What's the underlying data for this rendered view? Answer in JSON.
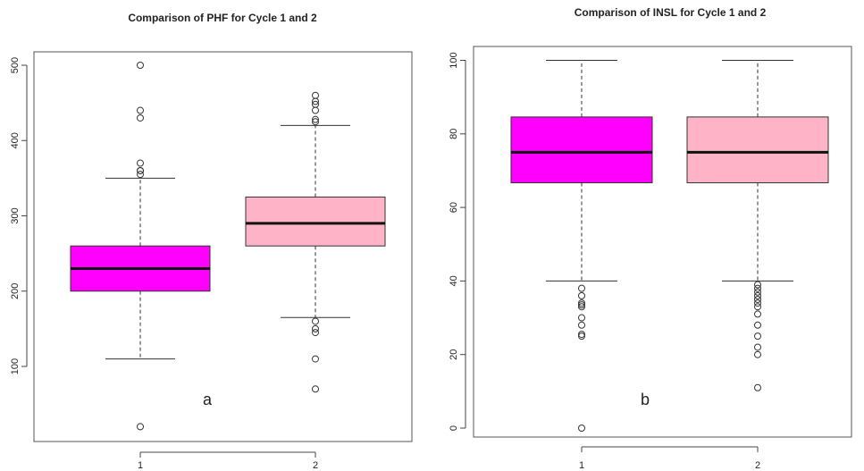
{
  "chart_data": [
    {
      "type": "boxplot",
      "title": "Comparison of PHF for Cycle 1 and 2",
      "panel_label": "a",
      "xlabel": "",
      "ylabel": "",
      "categories": [
        "1",
        "2"
      ],
      "yticks": [
        100,
        200,
        300,
        400,
        500
      ],
      "ylim": [
        0,
        520
      ],
      "grid": false,
      "boxes": [
        {
          "category": "1",
          "color": "#ff00ff",
          "whisker_low": 110,
          "q1": 200,
          "median": 230,
          "q3": 260,
          "whisker_high": 350,
          "outliers": [
            20,
            355,
            360,
            360,
            370,
            430,
            440,
            500
          ]
        },
        {
          "category": "2",
          "color": "#ffb3c6",
          "whisker_low": 165,
          "q1": 260,
          "median": 290,
          "q3": 325,
          "whisker_high": 420,
          "outliers": [
            70,
            110,
            145,
            150,
            160,
            425,
            428,
            440,
            448,
            452,
            460
          ]
        }
      ]
    },
    {
      "type": "boxplot",
      "title": "Comparison of INSL for Cycle 1 and 2",
      "panel_label": "b",
      "xlabel": "",
      "ylabel": "",
      "categories": [
        "1",
        "2"
      ],
      "yticks": [
        0,
        20,
        40,
        60,
        80,
        100
      ],
      "ylim": [
        0,
        100
      ],
      "grid": false,
      "boxes": [
        {
          "category": "1",
          "color": "#ff00ff",
          "whisker_low": 40,
          "q1": 66.7,
          "median": 75,
          "q3": 84.6,
          "whisker_high": 100,
          "outliers": [
            0,
            25,
            25.5,
            28,
            30,
            33,
            33.5,
            34,
            36,
            38
          ]
        },
        {
          "category": "2",
          "color": "#ffb3c6",
          "whisker_low": 40,
          "q1": 66.7,
          "median": 75,
          "q3": 84.6,
          "whisker_high": 100,
          "outliers": [
            11,
            20,
            22,
            25,
            28,
            31,
            33,
            34,
            35,
            36,
            37,
            38,
            39
          ]
        }
      ]
    }
  ]
}
